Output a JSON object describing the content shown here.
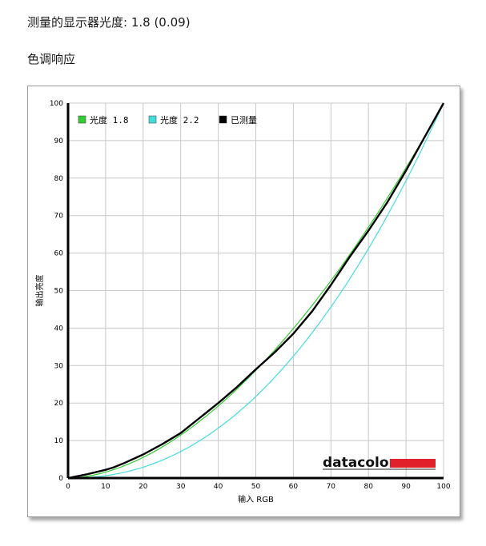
{
  "page": {
    "measured_gamma_text": "测量的显示器光度: 1.8 (0.09)",
    "section_title": "色调响应"
  },
  "logo": {
    "text": "datacolor",
    "bar_color": "#e0202a"
  },
  "colors": {
    "gamma18": "#33cc33",
    "gamma22": "#44dddd",
    "measured": "#000000",
    "grid": "#c8c8c8"
  },
  "chart_data": {
    "type": "line",
    "xlabel": "输入 RGB",
    "ylabel": "输出亮度",
    "xlim": [
      0,
      100
    ],
    "ylim": [
      0,
      100
    ],
    "xticks": [
      "0",
      "10",
      "20",
      "30",
      "40",
      "50",
      "60",
      "70",
      "80",
      "90",
      "100"
    ],
    "yticks": [
      "0",
      "10",
      "20",
      "30",
      "40",
      "50",
      "60",
      "70",
      "80",
      "90",
      "100"
    ],
    "grid": true,
    "legend_position": "top-left",
    "series": [
      {
        "name": "光度 1.8",
        "type": "function",
        "gamma": 1.8,
        "color": "#33cc33"
      },
      {
        "name": "光度 2.2",
        "type": "function",
        "gamma": 2.2,
        "color": "#44dddd"
      },
      {
        "name": "已测量",
        "type": "points",
        "color": "#000000",
        "x": [
          0,
          5,
          10,
          12,
          15,
          20,
          25,
          30,
          35,
          40,
          45,
          50,
          55,
          60,
          65,
          70,
          75,
          80,
          85,
          90,
          95,
          100
        ],
        "y": [
          0,
          1,
          2.2,
          2.8,
          4,
          6.3,
          9,
          12,
          16,
          20,
          24.3,
          29,
          33.5,
          38.5,
          44.5,
          51.5,
          59,
          66,
          73.5,
          82,
          91,
          100
        ]
      }
    ]
  }
}
